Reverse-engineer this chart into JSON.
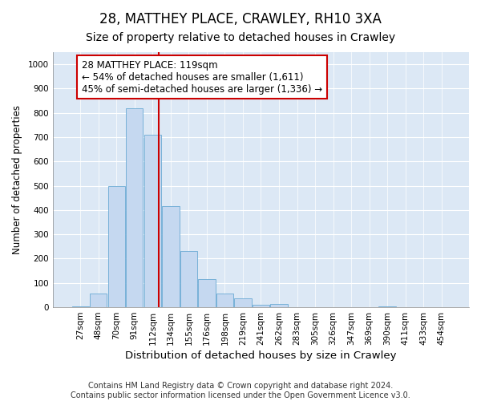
{
  "title": "28, MATTHEY PLACE, CRAWLEY, RH10 3XA",
  "subtitle": "Size of property relative to detached houses in Crawley",
  "xlabel": "Distribution of detached houses by size in Crawley",
  "ylabel": "Number of detached properties",
  "categories": [
    "27sqm",
    "48sqm",
    "70sqm",
    "91sqm",
    "112sqm",
    "134sqm",
    "155sqm",
    "176sqm",
    "198sqm",
    "219sqm",
    "241sqm",
    "262sqm",
    "283sqm",
    "305sqm",
    "326sqm",
    "347sqm",
    "369sqm",
    "390sqm",
    "411sqm",
    "433sqm",
    "454sqm"
  ],
  "values": [
    5,
    55,
    500,
    820,
    710,
    415,
    230,
    115,
    55,
    35,
    10,
    15,
    0,
    0,
    0,
    0,
    0,
    5,
    0,
    0,
    0
  ],
  "bar_color": "#c5d8f0",
  "bar_edgecolor": "#6aaad4",
  "vline_color": "#cc0000",
  "vline_pos": 4.32,
  "annotation_text": "28 MATTHEY PLACE: 119sqm\n← 54% of detached houses are smaller (1,611)\n45% of semi-detached houses are larger (1,336) →",
  "annotation_box_edgecolor": "#cc0000",
  "annotation_box_facecolor": "#ffffff",
  "ylim": [
    0,
    1050
  ],
  "yticks": [
    0,
    100,
    200,
    300,
    400,
    500,
    600,
    700,
    800,
    900,
    1000
  ],
  "background_color": "#dce8f5",
  "grid_color": "#ffffff",
  "fig_facecolor": "#ffffff",
  "footer_line1": "Contains HM Land Registry data © Crown copyright and database right 2024.",
  "footer_line2": "Contains public sector information licensed under the Open Government Licence v3.0.",
  "title_fontsize": 12,
  "subtitle_fontsize": 10,
  "xlabel_fontsize": 9.5,
  "ylabel_fontsize": 8.5,
  "tick_fontsize": 7.5,
  "annotation_fontsize": 8.5,
  "footer_fontsize": 7
}
